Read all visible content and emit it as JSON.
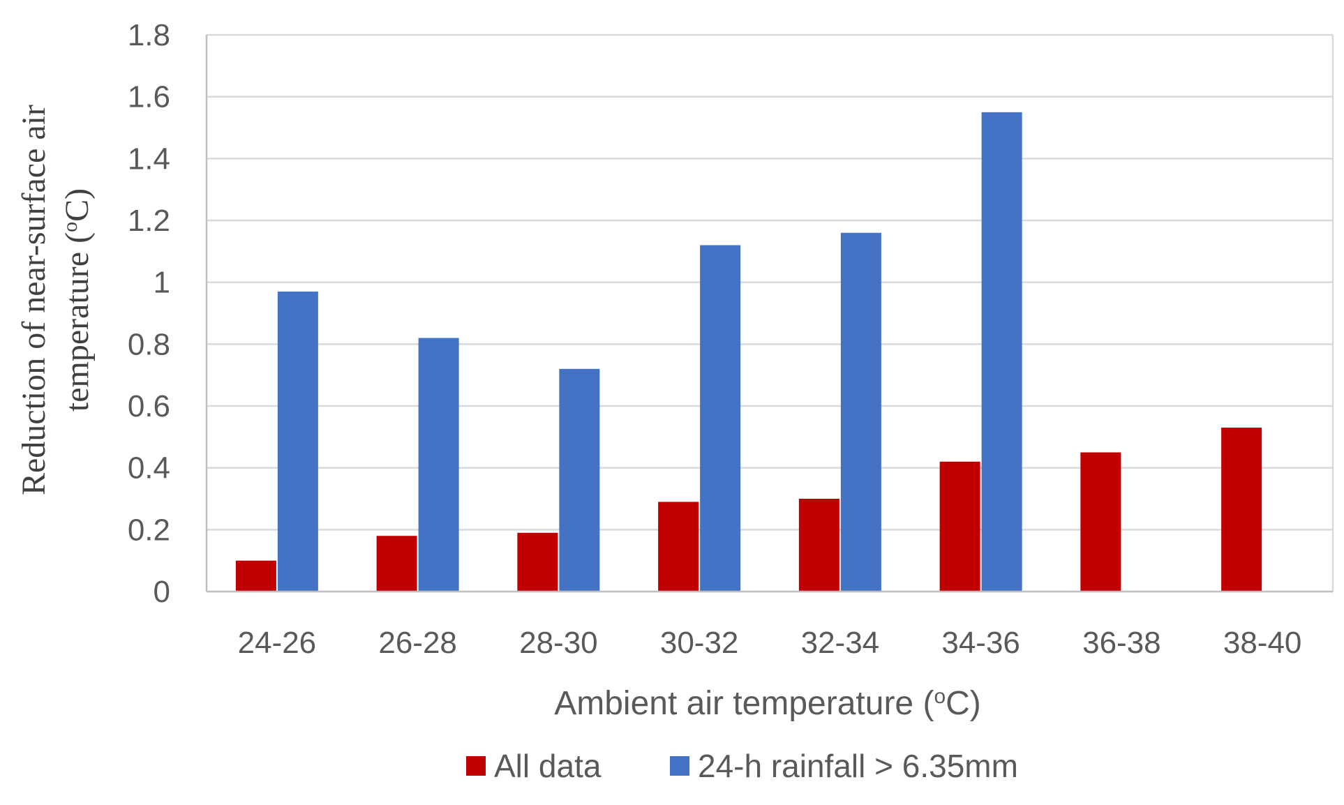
{
  "chart_data": {
    "type": "bar",
    "title": "",
    "xlabel": "Ambient air temperature (",
    "xlabel_unit_sup": "o",
    "xlabel_unit": "C)",
    "ylabel_line1": "Reduction of near-surface air",
    "ylabel_line2": "temperature (",
    "ylabel_unit_sup": "o",
    "ylabel_unit": "C)",
    "ylim": [
      0,
      1.8
    ],
    "ytick_step": 0.2,
    "yticks": [
      "0",
      "0.2",
      "0.4",
      "0.6",
      "0.8",
      "1",
      "1.2",
      "1.4",
      "1.6",
      "1.8"
    ],
    "grid": true,
    "legend_position": "bottom",
    "categories": [
      "24-26",
      "26-28",
      "28-30",
      "30-32",
      "32-34",
      "34-36",
      "36-38",
      "38-40"
    ],
    "series": [
      {
        "name": "All data",
        "color": "#C00000",
        "values": [
          0.1,
          0.18,
          0.19,
          0.29,
          0.3,
          0.42,
          0.45,
          0.53
        ]
      },
      {
        "name": "24-h rainfall > 6.35mm",
        "color": "#4472C4",
        "values": [
          0.97,
          0.82,
          0.72,
          1.12,
          1.16,
          1.55,
          null,
          null
        ]
      }
    ]
  }
}
